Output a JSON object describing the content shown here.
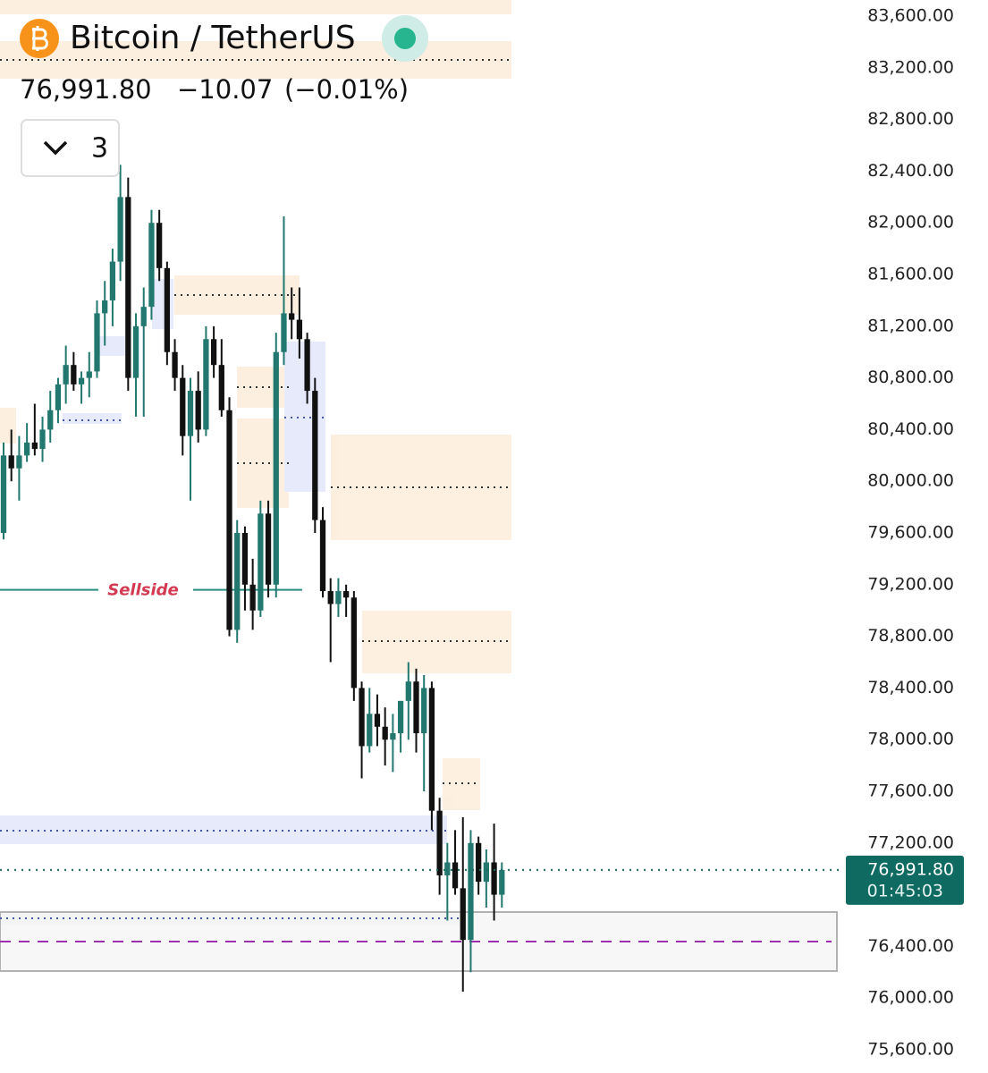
{
  "chart_data": {
    "type": "candlestick",
    "title": "Bitcoin / TetherUS",
    "price": "76,991.80",
    "change": "−10.07",
    "change_pct": "(−0.01%)",
    "indicator_count": "3",
    "up_color": "#22786f",
    "down_color": "#111111",
    "open": [
      79600,
      80200,
      80100,
      80200,
      80300,
      80250,
      80400,
      80550,
      80750,
      80900,
      80750,
      80800,
      80850,
      81300,
      81400,
      81700,
      82200,
      80800,
      81200,
      81350,
      82000,
      81650,
      81000,
      80800,
      80350,
      80700,
      80400,
      81100,
      80900,
      80550,
      78850,
      79600,
      79200,
      79000,
      79750,
      79200,
      81000,
      81300,
      81250,
      81100,
      80700,
      79700,
      79150,
      79050,
      79150,
      79100,
      78400,
      77950,
      78200,
      78100,
      78000,
      78050,
      78300,
      78450,
      78050,
      78400,
      77450,
      76950,
      77050,
      76850,
      76450,
      77200,
      76900,
      77050,
      76800
    ],
    "high": [
      80300,
      80400,
      80350,
      80450,
      80600,
      80500,
      80700,
      80800,
      81050,
      81000,
      80850,
      81000,
      81400,
      81550,
      81800,
      82450,
      82350,
      81300,
      81500,
      82100,
      82100,
      81700,
      81100,
      80900,
      80800,
      80850,
      81200,
      81200,
      81100,
      80650,
      79700,
      79650,
      79400,
      79850,
      79850,
      81150,
      82050,
      81500,
      81500,
      81150,
      80800,
      79800,
      79250,
      79250,
      79200,
      79150,
      78450,
      78400,
      78350,
      78250,
      78200,
      78300,
      78600,
      78550,
      78500,
      78450,
      77550,
      77200,
      77300,
      77400,
      77300,
      77250,
      77150,
      77350,
      77050
    ],
    "low": [
      79550,
      80000,
      79850,
      80150,
      80200,
      80150,
      80300,
      80450,
      80600,
      80700,
      80600,
      80650,
      80800,
      81050,
      81200,
      81550,
      80700,
      80500,
      80500,
      81250,
      81550,
      80900,
      80700,
      80200,
      79850,
      80300,
      80350,
      80800,
      80500,
      78800,
      78750,
      79000,
      78850,
      78950,
      79100,
      79100,
      80900,
      81100,
      80950,
      80600,
      79600,
      79100,
      78600,
      78950,
      78950,
      78300,
      77700,
      77900,
      77950,
      77800,
      77750,
      77900,
      78000,
      77900,
      77600,
      77300,
      76800,
      76600,
      76800,
      76050,
      76200,
      76800,
      76700,
      76600,
      76700
    ],
    "close": [
      80200,
      80100,
      80200,
      80300,
      80250,
      80400,
      80550,
      80750,
      80900,
      80750,
      80800,
      80850,
      81300,
      81400,
      81700,
      82200,
      80800,
      81200,
      81350,
      82000,
      81650,
      81000,
      80800,
      80350,
      80700,
      80400,
      81100,
      80900,
      80550,
      78850,
      79600,
      79200,
      79000,
      79750,
      79200,
      81000,
      81300,
      81250,
      81100,
      80700,
      79700,
      79150,
      79050,
      79150,
      79100,
      78400,
      77950,
      78200,
      78100,
      78000,
      78050,
      78300,
      78450,
      78050,
      78400,
      77450,
      76950,
      77050,
      76850,
      76450,
      77200,
      76900,
      77050,
      76800,
      76991.8
    ],
    "ylim": [
      75420,
      83725
    ],
    "yticks": [
      {
        "value": 83600,
        "label": "83,600.00"
      },
      {
        "value": 83200,
        "label": "83,200.00"
      },
      {
        "value": 82800,
        "label": "82,800.00"
      },
      {
        "value": 82400,
        "label": "82,400.00"
      },
      {
        "value": 82000,
        "label": "82,000.00"
      },
      {
        "value": 81600,
        "label": "81,600.00"
      },
      {
        "value": 81200,
        "label": "81,200.00"
      },
      {
        "value": 80800,
        "label": "80,800.00"
      },
      {
        "value": 80400,
        "label": "80,400.00"
      },
      {
        "value": 80000,
        "label": "80,000.00"
      },
      {
        "value": 79600,
        "label": "79,600.00"
      },
      {
        "value": 79200,
        "label": "79,200.00"
      },
      {
        "value": 78800,
        "label": "78,800.00"
      },
      {
        "value": 78400,
        "label": "78,400.00"
      },
      {
        "value": 78000,
        "label": "78,000.00"
      },
      {
        "value": 77600,
        "label": "77,600.00"
      },
      {
        "value": 77200,
        "label": "77,200.00"
      },
      {
        "value": 76400,
        "label": "76,400.00"
      },
      {
        "value": 76000,
        "label": "76,000.00"
      },
      {
        "value": 75600,
        "label": "75,600.00"
      }
    ],
    "last_price": {
      "value": 76991.8,
      "label": "76,991.80"
    },
    "countdown": "01:45:03",
    "sellside": {
      "value": 79160,
      "label": "Sellside"
    }
  }
}
